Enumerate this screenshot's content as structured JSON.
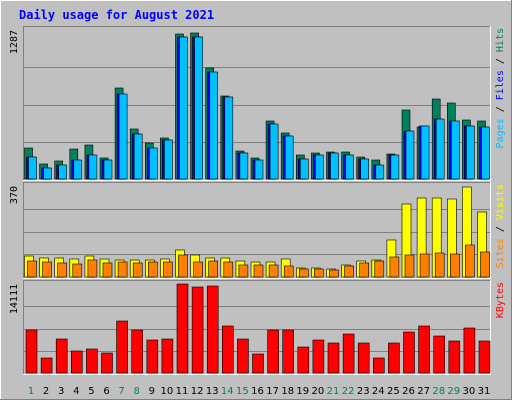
{
  "colors": {
    "hits": "#00805c",
    "files": "#0000ff",
    "pages": "#00c0ff",
    "visits": "#ffff00",
    "sites": "#ff8000",
    "kbytes": "#ff0000",
    "title": "#0000ff",
    "weekend": "#00805c",
    "weekday": "#000000",
    "panel_bg": "#c0c0c0",
    "grid": "#808080"
  },
  "chart_data": {
    "type": "bar",
    "title": "Daily usage for August 2021",
    "categories": [
      "1",
      "2",
      "3",
      "4",
      "5",
      "6",
      "7",
      "8",
      "9",
      "10",
      "11",
      "12",
      "13",
      "14",
      "15",
      "16",
      "17",
      "18",
      "19",
      "20",
      "21",
      "22",
      "23",
      "24",
      "25",
      "26",
      "27",
      "28",
      "29",
      "30",
      "31"
    ],
    "weekend_days": [
      "1",
      "7",
      "8",
      "14",
      "15",
      "21",
      "22",
      "28",
      "29"
    ],
    "grid": true,
    "panels": [
      {
        "id": "top",
        "max_label": "1287",
        "ylim": [
          0,
          1287
        ],
        "right_label": [
          {
            "text": "Pages",
            "color_key": "pages"
          },
          {
            "text": " / ",
            "color_key": "weekday"
          },
          {
            "text": "Files",
            "color_key": "files"
          },
          {
            "text": " / ",
            "color_key": "weekday"
          },
          {
            "text": "Hits",
            "color_key": "hits"
          }
        ],
        "series": [
          {
            "name": "Hits",
            "color_key": "hits",
            "values": [
              272,
              132,
              154,
              260,
              290,
              184,
              789,
              428,
              310,
              358,
              1249,
              1264,
              960,
              719,
              244,
              184,
              499,
              398,
              209,
              227,
              229,
              231,
              193,
              163,
              214,
              599,
              446,
              690,
              655,
              508,
              497
            ]
          },
          {
            "name": "Files",
            "color_key": "files",
            "values": [
              187,
              97,
              119,
              165,
              209,
              160,
              738,
              393,
              265,
              334,
              1227,
              1229,
              921,
              705,
              222,
              162,
              478,
              373,
              173,
              209,
              226,
              209,
              169,
              119,
              211,
              418,
              457,
              517,
              500,
              454,
              452
            ]
          },
          {
            "name": "Pages",
            "color_key": "pages",
            "values": [
              187,
              97,
              119,
              165,
              209,
              160,
              738,
              393,
              265,
              334,
              1227,
              1229,
              921,
              705,
              222,
              162,
              478,
              373,
              173,
              209,
              226,
              209,
              169,
              119,
              211,
              418,
              457,
              517,
              500,
              454,
              452
            ]
          }
        ]
      },
      {
        "id": "middle",
        "max_label": "370",
        "ylim": [
          0,
          370
        ],
        "right_label": [
          {
            "text": "Sites",
            "color_key": "sites"
          },
          {
            "text": " / ",
            "color_key": "weekday"
          },
          {
            "text": "Visits",
            "color_key": "visits"
          }
        ],
        "series": [
          {
            "name": "Visits",
            "color_key": "visits",
            "values": [
              85,
              77,
              76,
              73,
              85,
              74,
              71,
              71,
              68,
              75,
              108,
              88,
              76,
              76,
              67,
              63,
              59,
              72,
              37,
              36,
              34,
              50,
              64,
              71,
              150,
              296,
              321,
              320,
              318,
              365,
              264
            ]
          },
          {
            "name": "Sites",
            "color_key": "sites",
            "values": [
              67,
              61,
              58,
              54,
              71,
              58,
              59,
              55,
              60,
              63,
              89,
              60,
              65,
              60,
              48,
              48,
              48,
              44,
              34,
              34,
              30,
              45,
              58,
              65,
              83,
              89,
              93,
              98,
              94,
              131,
              101
            ]
          }
        ]
      },
      {
        "id": "bottom",
        "max_label": "14111",
        "ylim": [
          0,
          14111
        ],
        "right_label": [
          {
            "text": "KBytes",
            "color_key": "kbytes"
          }
        ],
        "series": [
          {
            "name": "KBytes",
            "color_key": "kbytes",
            "values": [
              6843,
              2384,
              5449,
              3537,
              3840,
              3173,
              8174,
              6843,
              5195,
              5323,
              14111,
              13606,
              13860,
              7413,
              5449,
              2952,
              6843,
              6843,
              4181,
              5195,
              4787,
              6108,
              4787,
              2384,
              4787,
              6535,
              7413,
              5866,
              5056,
              7128,
              5056
            ]
          }
        ]
      }
    ]
  }
}
